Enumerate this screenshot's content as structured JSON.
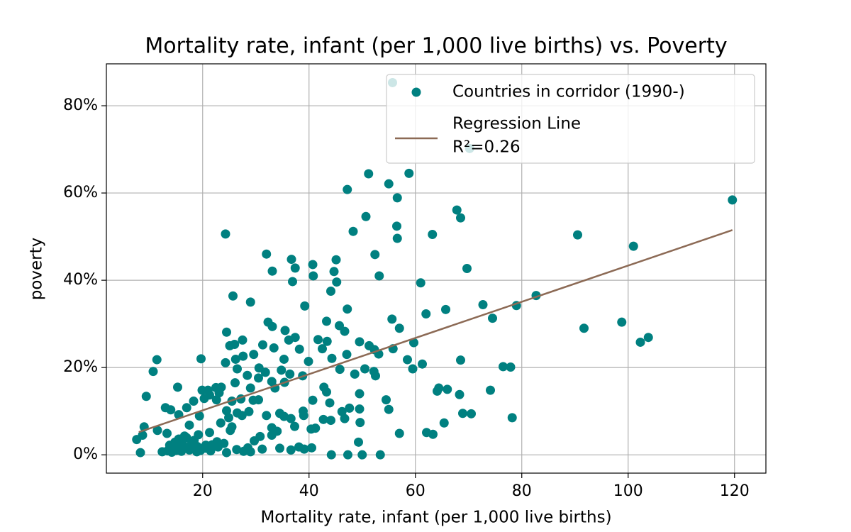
{
  "chart_data": {
    "type": "scatter",
    "title": "Mortality rate, infant (per 1,000 live births) vs. Poverty",
    "xlabel": "Mortality rate, infant (per 1,000 live births)",
    "ylabel": "poverty",
    "xlim": [
      1.9,
      125.9
    ],
    "ylim": [
      -4.2,
      89.6
    ],
    "xticks": [
      20,
      40,
      60,
      80,
      100,
      120
    ],
    "yticks": [
      {
        "value": 0,
        "label": "0%"
      },
      {
        "value": 20,
        "label": "20%"
      },
      {
        "value": 40,
        "label": "40%"
      },
      {
        "value": 60,
        "label": "60%"
      },
      {
        "value": 80,
        "label": "80%"
      }
    ],
    "grid": true,
    "legend": "upper right",
    "series": [
      {
        "name": "Countries in corridor (1990-)",
        "type": "scatter",
        "color": "#008080",
        "x": [
          55.7,
          70.2,
          58.8,
          51.2,
          47.2,
          55,
          56.6,
          119.6,
          67.8,
          68.5,
          50.7,
          56.5,
          48.3,
          63.2,
          24.3,
          90.5,
          56.6,
          101,
          32,
          52.4,
          36.7,
          45.1,
          40.7,
          37.4,
          69.7,
          33.1,
          44.7,
          40.8,
          53.2,
          36.9,
          45.2,
          61,
          44.1,
          25.7,
          82.7,
          29,
          79,
          72.7,
          39.2,
          47.2,
          65.7,
          62,
          74.5,
          55.6,
          43.3,
          32.3,
          98.8,
          45.7,
          33.1,
          91.7,
          57,
          46.7,
          24.5,
          35.5,
          103.8,
          102.3,
          27.5,
          37.4,
          36.2,
          41.7,
          43.4,
          59.7,
          49.5,
          25.1,
          31.3,
          26,
          33.4,
          38.2,
          42.5,
          52.3,
          51.3,
          55.8,
          29.6,
          27.6,
          24.3,
          19.7,
          11.4,
          26.2,
          35.3,
          44.3,
          47.1,
          53.1,
          68.5,
          58.5,
          61.3,
          76.5,
          77.9,
          30.6,
          26.5,
          34.8,
          39.9,
          50.5,
          52.2,
          59.5,
          45.8,
          10.7,
          28.4,
          31.8,
          36.4,
          48.6,
          52.5,
          38.8,
          30.5,
          33,
          26.1,
          35.4,
          42.8,
          64.1,
          64.4,
          66,
          74.1,
          15.3,
          21,
          22.5,
          23.5,
          19.9,
          29,
          33.6,
          23.1,
          21.3,
          9.4,
          20.3,
          43.3,
          30.5,
          40.7,
          49.5,
          54.5,
          68.3,
          18.3,
          22.6,
          25.5,
          27.2,
          29.5,
          43.9,
          13,
          14,
          17,
          24.5,
          26.5,
          28.7,
          34.5,
          38.9,
          46.2,
          47.6,
          49.5,
          55,
          15.5,
          19.4,
          24.9,
          27.4,
          32,
          35.3,
          39,
          42.7,
          44.1,
          46.7,
          68.9,
          70.5,
          78.2,
          65.4,
          23.4,
          25.5,
          33,
          37.3,
          41.2,
          49.6,
          36.6,
          9,
          11.5,
          17.5,
          21.3,
          25.2,
          34,
          40.4,
          57,
          62.1,
          63.3,
          8.7,
          13.3,
          30.8,
          19.2,
          7.6,
          22.7,
          29.7,
          33,
          49.3,
          15.5,
          17,
          18,
          13.8,
          16.2,
          14.5,
          12.4,
          8.3,
          13.4,
          15,
          16,
          17.5,
          18.5,
          19.6,
          20.5,
          21.5,
          22.9,
          24.5,
          27.7,
          28.5,
          31.2,
          34.5,
          36.6,
          38.1,
          39.1,
          40.5,
          44.2,
          47.3,
          50,
          53.4,
          16.6,
          18.4,
          20.6,
          14.8,
          19,
          24,
          26.4,
          29,
          15.8,
          17.8,
          16.9,
          14.2,
          18.9,
          21.8
        ],
        "values": [
          85.3,
          70.2,
          64.5,
          64.4,
          60.8,
          62.1,
          58.9,
          58.4,
          56.1,
          54.3,
          54.6,
          52.4,
          51.2,
          50.5,
          50.6,
          50.4,
          49.6,
          47.8,
          46,
          45.9,
          44.8,
          44.7,
          43.6,
          42.8,
          42.7,
          42.1,
          42,
          41,
          41,
          39.7,
          39.6,
          39.4,
          37.5,
          36.4,
          36.5,
          35,
          34.2,
          34.4,
          34.1,
          33.4,
          33.3,
          32.3,
          31.3,
          31.1,
          30.6,
          30.4,
          30.4,
          29.6,
          29.4,
          29,
          29,
          28.3,
          28.1,
          28.5,
          26.9,
          25.8,
          26.3,
          26.9,
          26.3,
          26.4,
          26,
          25.7,
          25.9,
          25,
          25.2,
          25.3,
          24.5,
          24.2,
          24.3,
          24.1,
          25,
          24.3,
          23,
          22.6,
          21.1,
          22,
          21.8,
          21.9,
          21.9,
          22.1,
          23,
          23.1,
          21.7,
          21.8,
          20.8,
          20.2,
          20.1,
          19.9,
          19.7,
          19.4,
          21.4,
          19.7,
          19.1,
          19.7,
          19.6,
          19.1,
          18.2,
          18.9,
          18.5,
          18.5,
          18.1,
          18.1,
          17.6,
          16.8,
          16.5,
          16.6,
          15.5,
          14.6,
          15.3,
          15,
          14.8,
          15.5,
          14.8,
          15.4,
          15.5,
          14.8,
          15.3,
          15.3,
          14.2,
          13.7,
          13.4,
          12.9,
          14.4,
          12.6,
          12.5,
          14,
          12.6,
          13.8,
          12.3,
          12.6,
          12.3,
          12.8,
          12.5,
          11.9,
          10.8,
          10.3,
          10.8,
          10.1,
          9.6,
          9.9,
          9.5,
          10,
          9.9,
          10.7,
          10.5,
          10.4,
          9.2,
          8.9,
          8.5,
          9,
          9,
          8.8,
          9,
          8.1,
          7.9,
          8.3,
          9.5,
          9.4,
          8.5,
          7.3,
          7.3,
          6.4,
          6.2,
          6.5,
          6.1,
          7.4,
          8.3,
          6.4,
          5.6,
          6.8,
          5.1,
          5.6,
          5.4,
          5.9,
          4.9,
          5.1,
          4.7,
          4.5,
          4.9,
          4.2,
          4.6,
          3.5,
          3,
          3.2,
          4.5,
          2.9,
          3.6,
          3.9,
          2.7,
          2.2,
          2.5,
          1.4,
          0.7,
          0.5,
          0.9,
          1,
          0.8,
          1.1,
          1.4,
          1,
          1.5,
          0.9,
          1.8,
          0.5,
          0.8,
          1.6,
          1.3,
          1.5,
          1.1,
          1.8,
          1.3,
          1.6,
          0,
          0,
          0,
          0,
          4.3,
          3.3,
          2.2,
          2.9,
          1.9,
          2.6,
          1.2,
          0.7,
          1.9,
          2.2,
          1.5,
          0.6,
          0.7,
          2.3
        ]
      },
      {
        "name": "Regression Line",
        "label": "R²=0.26",
        "type": "line",
        "color": "#8c6a55",
        "x": [
          8,
          119.6
        ],
        "values": [
          5.2,
          51.5
        ]
      }
    ]
  }
}
